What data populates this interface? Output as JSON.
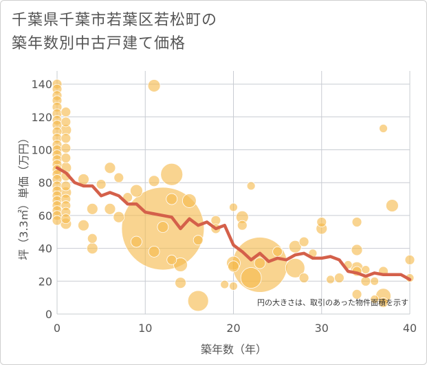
{
  "title": {
    "line1": "千葉県千葉市若葉区若松町の",
    "line2": "築年数別中古戸建て価格"
  },
  "note": "円の大きさは、取引のあった物件面積を示す",
  "colors": {
    "bubble": "#f5b94c",
    "line": "#d4604a",
    "grid": "#c8ccd2",
    "plot_bg": "#ffffff"
  },
  "chart_data": {
    "type": "scatter",
    "xlabel": "築年数（年）",
    "ylabel": "坪（3.3㎡）単価（万円）",
    "xlim": [
      0,
      40
    ],
    "ylim": [
      0,
      148
    ],
    "xticks": [
      0,
      10,
      20,
      30,
      40
    ],
    "yticks": [
      0,
      20,
      40,
      60,
      80,
      100,
      120,
      140
    ],
    "points": [
      {
        "x": 0,
        "y": 140,
        "s": 7
      },
      {
        "x": 0,
        "y": 137,
        "s": 7
      },
      {
        "x": 0,
        "y": 133,
        "s": 7
      },
      {
        "x": 0,
        "y": 130,
        "s": 7
      },
      {
        "x": 0,
        "y": 126,
        "s": 7
      },
      {
        "x": 0,
        "y": 122,
        "s": 7
      },
      {
        "x": 0,
        "y": 118,
        "s": 7
      },
      {
        "x": 0,
        "y": 115,
        "s": 7
      },
      {
        "x": 0,
        "y": 111,
        "s": 7
      },
      {
        "x": 0,
        "y": 107,
        "s": 7
      },
      {
        "x": 0,
        "y": 103,
        "s": 7
      },
      {
        "x": 0,
        "y": 100,
        "s": 7
      },
      {
        "x": 0,
        "y": 97,
        "s": 7
      },
      {
        "x": 0,
        "y": 94,
        "s": 7
      },
      {
        "x": 0,
        "y": 91,
        "s": 7
      },
      {
        "x": 0,
        "y": 88,
        "s": 7
      },
      {
        "x": 0,
        "y": 85,
        "s": 7
      },
      {
        "x": 0,
        "y": 82,
        "s": 7
      },
      {
        "x": 0,
        "y": 78,
        "s": 7
      },
      {
        "x": 0,
        "y": 75,
        "s": 7
      },
      {
        "x": 0,
        "y": 72,
        "s": 7
      },
      {
        "x": 0,
        "y": 69,
        "s": 7
      },
      {
        "x": 0,
        "y": 66,
        "s": 7
      },
      {
        "x": 0,
        "y": 63,
        "s": 7
      },
      {
        "x": 0,
        "y": 60,
        "s": 7
      },
      {
        "x": 0,
        "y": 57,
        "s": 7
      },
      {
        "x": 1,
        "y": 123,
        "s": 7
      },
      {
        "x": 1,
        "y": 117,
        "s": 7
      },
      {
        "x": 1,
        "y": 112,
        "s": 8
      },
      {
        "x": 1,
        "y": 107,
        "s": 7
      },
      {
        "x": 1,
        "y": 101,
        "s": 7
      },
      {
        "x": 1,
        "y": 95,
        "s": 7
      },
      {
        "x": 1,
        "y": 89,
        "s": 8
      },
      {
        "x": 1,
        "y": 84,
        "s": 7
      },
      {
        "x": 1,
        "y": 78,
        "s": 7
      },
      {
        "x": 1,
        "y": 74,
        "s": 8
      },
      {
        "x": 1,
        "y": 70,
        "s": 7
      },
      {
        "x": 1,
        "y": 66,
        "s": 7
      },
      {
        "x": 1,
        "y": 62,
        "s": 7
      },
      {
        "x": 1,
        "y": 58,
        "s": 7
      },
      {
        "x": 1,
        "y": 55,
        "s": 8
      },
      {
        "x": 3,
        "y": 82,
        "s": 8
      },
      {
        "x": 3,
        "y": 54,
        "s": 8
      },
      {
        "x": 4,
        "y": 64,
        "s": 8
      },
      {
        "x": 4,
        "y": 46,
        "s": 7
      },
      {
        "x": 4,
        "y": 40,
        "s": 8
      },
      {
        "x": 5,
        "y": 79,
        "s": 7
      },
      {
        "x": 6,
        "y": 89,
        "s": 8
      },
      {
        "x": 6,
        "y": 64,
        "s": 8
      },
      {
        "x": 7,
        "y": 83,
        "s": 7
      },
      {
        "x": 7,
        "y": 59,
        "s": 8
      },
      {
        "x": 8,
        "y": 71,
        "s": 7
      },
      {
        "x": 9,
        "y": 75,
        "s": 9
      },
      {
        "x": 9,
        "y": 44,
        "s": 8
      },
      {
        "x": 11,
        "y": 139,
        "s": 9
      },
      {
        "x": 11,
        "y": 81,
        "s": 8
      },
      {
        "x": 11,
        "y": 38,
        "s": 8
      },
      {
        "x": 12,
        "y": 52,
        "s": 60
      },
      {
        "x": 12,
        "y": 53,
        "s": 8
      },
      {
        "x": 13,
        "y": 85,
        "s": 16
      },
      {
        "x": 13,
        "y": 70,
        "s": 8
      },
      {
        "x": 13,
        "y": 33,
        "s": 7
      },
      {
        "x": 14,
        "y": 30,
        "s": 10
      },
      {
        "x": 14,
        "y": 19,
        "s": 8
      },
      {
        "x": 15,
        "y": 69,
        "s": 10
      },
      {
        "x": 16,
        "y": 45,
        "s": 7
      },
      {
        "x": 16,
        "y": 8,
        "s": 15
      },
      {
        "x": 18,
        "y": 57,
        "s": 7
      },
      {
        "x": 18,
        "y": 52,
        "s": 7
      },
      {
        "x": 19,
        "y": 18,
        "s": 6
      },
      {
        "x": 20,
        "y": 65,
        "s": 6
      },
      {
        "x": 20,
        "y": 31,
        "s": 10
      },
      {
        "x": 20,
        "y": 29,
        "s": 8
      },
      {
        "x": 20,
        "y": 17,
        "s": 6
      },
      {
        "x": 21,
        "y": 59,
        "s": 9
      },
      {
        "x": 21,
        "y": 54,
        "s": 7
      },
      {
        "x": 22,
        "y": 78,
        "s": 6
      },
      {
        "x": 22,
        "y": 22,
        "s": 15
      },
      {
        "x": 23,
        "y": 30,
        "s": 40
      },
      {
        "x": 23,
        "y": 31,
        "s": 8
      },
      {
        "x": 25,
        "y": 38,
        "s": 7
      },
      {
        "x": 27,
        "y": 41,
        "s": 9
      },
      {
        "x": 27,
        "y": 28,
        "s": 14
      },
      {
        "x": 28,
        "y": 44,
        "s": 7
      },
      {
        "x": 28,
        "y": 22,
        "s": 7
      },
      {
        "x": 29,
        "y": 37,
        "s": 6
      },
      {
        "x": 30,
        "y": 56,
        "s": 7
      },
      {
        "x": 30,
        "y": 52,
        "s": 8
      },
      {
        "x": 31,
        "y": 21,
        "s": 6
      },
      {
        "x": 32,
        "y": 22,
        "s": 7
      },
      {
        "x": 33,
        "y": 30,
        "s": 6
      },
      {
        "x": 34,
        "y": 56,
        "s": 7
      },
      {
        "x": 34,
        "y": 39,
        "s": 8
      },
      {
        "x": 34,
        "y": 28,
        "s": 9
      },
      {
        "x": 34,
        "y": 26,
        "s": 7
      },
      {
        "x": 34,
        "y": 12,
        "s": 7
      },
      {
        "x": 35,
        "y": 20,
        "s": 7
      },
      {
        "x": 35,
        "y": 27,
        "s": 6
      },
      {
        "x": 36,
        "y": 20,
        "s": 6
      },
      {
        "x": 36,
        "y": 9,
        "s": 6
      },
      {
        "x": 37,
        "y": 113,
        "s": 6
      },
      {
        "x": 37,
        "y": 26,
        "s": 7
      },
      {
        "x": 37,
        "y": 11,
        "s": 11
      },
      {
        "x": 37,
        "y": 7,
        "s": 7
      },
      {
        "x": 38,
        "y": 66,
        "s": 9
      },
      {
        "x": 40,
        "y": 33,
        "s": 7
      },
      {
        "x": 40,
        "y": 22,
        "s": 6
      }
    ],
    "trend": {
      "x": [
        0,
        1,
        2,
        3,
        4,
        5,
        6,
        7,
        8,
        9,
        10,
        11,
        12,
        13,
        14,
        15,
        16,
        17,
        18,
        19,
        20,
        21,
        22,
        23,
        24,
        25,
        26,
        27,
        28,
        29,
        30,
        31,
        32,
        33,
        34,
        35,
        36,
        37,
        38,
        39,
        40
      ],
      "y": [
        89,
        86,
        80,
        78,
        78,
        72,
        74,
        72,
        67,
        67,
        62,
        61,
        60,
        59,
        52,
        58,
        54,
        56,
        52,
        54,
        42,
        38,
        33,
        37,
        32,
        34,
        33,
        36,
        37,
        34,
        34,
        35,
        33,
        26,
        25,
        23,
        25,
        24,
        24,
        24,
        21
      ]
    }
  }
}
